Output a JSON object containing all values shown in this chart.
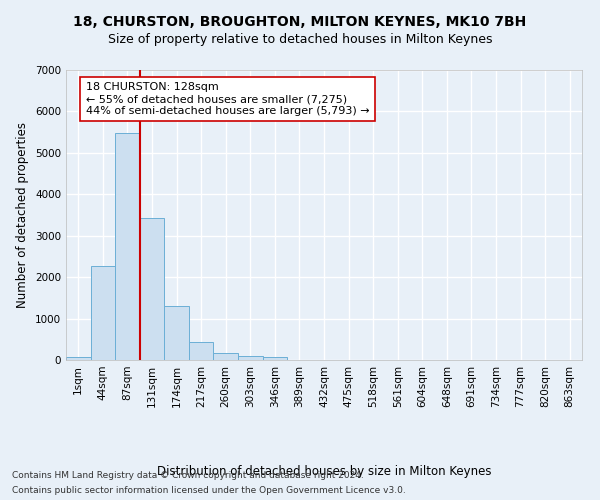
{
  "title": "18, CHURSTON, BROUGHTON, MILTON KEYNES, MK10 7BH",
  "subtitle": "Size of property relative to detached houses in Milton Keynes",
  "xlabel": "Distribution of detached houses by size in Milton Keynes",
  "ylabel": "Number of detached properties",
  "footer_line1": "Contains HM Land Registry data © Crown copyright and database right 2024.",
  "footer_line2": "Contains public sector information licensed under the Open Government Licence v3.0.",
  "bar_labels": [
    "1sqm",
    "44sqm",
    "87sqm",
    "131sqm",
    "174sqm",
    "217sqm",
    "260sqm",
    "303sqm",
    "346sqm",
    "389sqm",
    "432sqm",
    "475sqm",
    "518sqm",
    "561sqm",
    "604sqm",
    "648sqm",
    "691sqm",
    "734sqm",
    "777sqm",
    "820sqm",
    "863sqm"
  ],
  "bar_values": [
    70,
    2280,
    5480,
    3430,
    1310,
    440,
    165,
    90,
    70,
    0,
    0,
    0,
    0,
    0,
    0,
    0,
    0,
    0,
    0,
    0,
    0
  ],
  "bar_color": "#ccdff0",
  "bar_edgecolor": "#6bafd6",
  "vline_index": 2.5,
  "vline_color": "#cc0000",
  "annotation_text": "18 CHURSTON: 128sqm\n← 55% of detached houses are smaller (7,275)\n44% of semi-detached houses are larger (5,793) →",
  "annotation_box_edgecolor": "#cc0000",
  "annotation_box_facecolor": "#ffffff",
  "ylim": [
    0,
    7000
  ],
  "yticks": [
    0,
    1000,
    2000,
    3000,
    4000,
    5000,
    6000,
    7000
  ],
  "bg_color": "#e8f0f8",
  "axes_bg_color": "#e8f0f8",
  "grid_color": "#ffffff",
  "title_fontsize": 10,
  "subtitle_fontsize": 9,
  "axis_label_fontsize": 8.5,
  "tick_fontsize": 7.5,
  "annotation_fontsize": 8,
  "footer_fontsize": 6.5
}
